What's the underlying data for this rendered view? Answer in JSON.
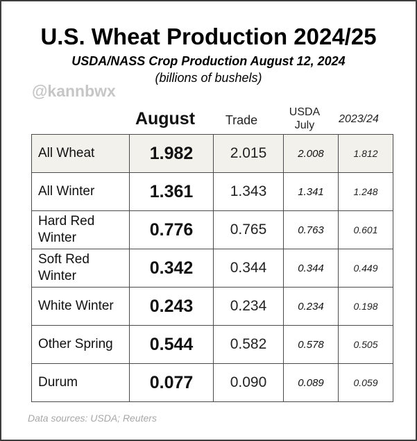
{
  "title": "U.S. Wheat Production 2024/25",
  "subtitle": "USDA/NASS Crop Production August 12, 2024",
  "units": "(billions of bushels)",
  "watermark": "@kannbwx",
  "source": "Data sources: USDA; Reuters",
  "colors": {
    "highlight_row": "#f3f1ec",
    "border": "#4a4a4a",
    "frame": "#3d3d3d"
  },
  "chart_data": {
    "type": "table",
    "columns": [
      "August",
      "Trade",
      "USDA July",
      "2023/24"
    ],
    "rows": [
      {
        "label": "All Wheat",
        "august": "1.982",
        "trade": "2.015",
        "usda_july": "2.008",
        "prior_year": "1.812",
        "highlight": true
      },
      {
        "label": "All Winter",
        "august": "1.361",
        "trade": "1.343",
        "usda_july": "1.341",
        "prior_year": "1.248"
      },
      {
        "label": "Hard Red Winter",
        "august": "0.776",
        "trade": "0.765",
        "usda_july": "0.763",
        "prior_year": "0.601"
      },
      {
        "label": "Soft Red Winter",
        "august": "0.342",
        "trade": "0.344",
        "usda_july": "0.344",
        "prior_year": "0.449"
      },
      {
        "label": "White Winter",
        "august": "0.243",
        "trade": "0.234",
        "usda_july": "0.234",
        "prior_year": "0.198"
      },
      {
        "label": "Other Spring",
        "august": "0.544",
        "trade": "0.582",
        "usda_july": "0.578",
        "prior_year": "0.505"
      },
      {
        "label": "Durum",
        "august": "0.077",
        "trade": "0.090",
        "usda_july": "0.089",
        "prior_year": "0.059"
      }
    ]
  }
}
